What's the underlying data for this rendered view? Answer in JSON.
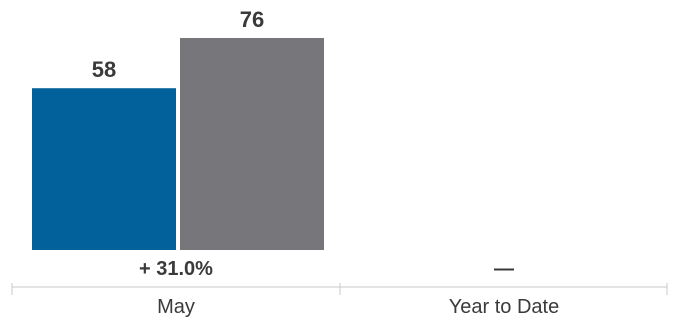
{
  "chart_data": {
    "type": "bar",
    "categories": [
      "May",
      "Year to Date"
    ],
    "series": [
      {
        "values": [
          58,
          null
        ],
        "color": "#02619a"
      },
      {
        "values": [
          76,
          null
        ],
        "color": "#77767b"
      }
    ],
    "value_labels": [
      [
        "58",
        ""
      ],
      [
        "76",
        ""
      ]
    ],
    "change_labels": [
      "+ 31.0%",
      "—"
    ],
    "ylim": [
      0,
      76
    ],
    "grid": false,
    "legend": "none"
  }
}
